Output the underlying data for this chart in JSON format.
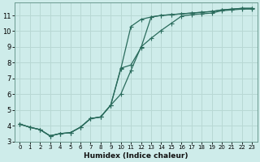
{
  "xlabel": "Humidex (Indice chaleur)",
  "xlim": [
    -0.5,
    23.5
  ],
  "ylim": [
    3.0,
    11.8
  ],
  "bg_color": "#ceecea",
  "grid_color": "#b8d8d4",
  "line_color": "#2a6b5c",
  "xticks": [
    0,
    1,
    2,
    3,
    4,
    5,
    6,
    7,
    8,
    9,
    10,
    11,
    12,
    13,
    14,
    15,
    16,
    17,
    18,
    19,
    20,
    21,
    22,
    23
  ],
  "yticks": [
    3,
    4,
    5,
    6,
    7,
    8,
    9,
    10,
    11
  ],
  "line1_x": [
    0,
    1,
    2,
    3,
    4,
    5,
    6,
    7,
    8,
    9,
    10,
    11,
    12,
    13,
    14,
    15,
    16,
    17,
    18,
    19,
    20,
    21,
    22,
    23
  ],
  "line1_y": [
    4.1,
    3.9,
    3.75,
    3.35,
    3.5,
    3.55,
    3.9,
    4.45,
    4.55,
    5.3,
    6.0,
    7.5,
    9.0,
    9.55,
    10.05,
    10.5,
    10.95,
    11.05,
    11.1,
    11.15,
    11.3,
    11.35,
    11.4,
    11.4
  ],
  "line2_x": [
    0,
    1,
    2,
    3,
    4,
    5,
    6,
    7,
    8,
    9,
    10,
    11,
    12,
    13,
    14,
    15,
    16,
    17,
    18,
    19,
    20,
    21,
    22,
    23
  ],
  "line2_y": [
    4.1,
    3.9,
    3.75,
    3.35,
    3.5,
    3.55,
    3.9,
    4.45,
    4.55,
    5.3,
    7.6,
    10.3,
    10.75,
    10.9,
    11.0,
    11.05,
    11.1,
    11.15,
    11.2,
    11.25,
    11.35,
    11.4,
    11.45,
    11.45
  ],
  "line3_x": [
    0,
    1,
    2,
    3,
    4,
    5,
    6,
    7,
    8,
    9,
    10,
    11,
    12,
    13,
    14,
    15,
    16,
    17,
    18,
    19,
    20,
    21,
    22,
    23
  ],
  "line3_y": [
    4.1,
    3.9,
    3.75,
    3.35,
    3.5,
    3.55,
    3.9,
    4.45,
    4.55,
    5.3,
    7.65,
    7.85,
    8.95,
    10.9,
    11.0,
    11.05,
    11.1,
    11.15,
    11.2,
    11.25,
    11.35,
    11.4,
    11.45,
    11.45
  ],
  "xlabel_fontsize": 6.5,
  "tick_fontsize_x": 5,
  "tick_fontsize_y": 6
}
